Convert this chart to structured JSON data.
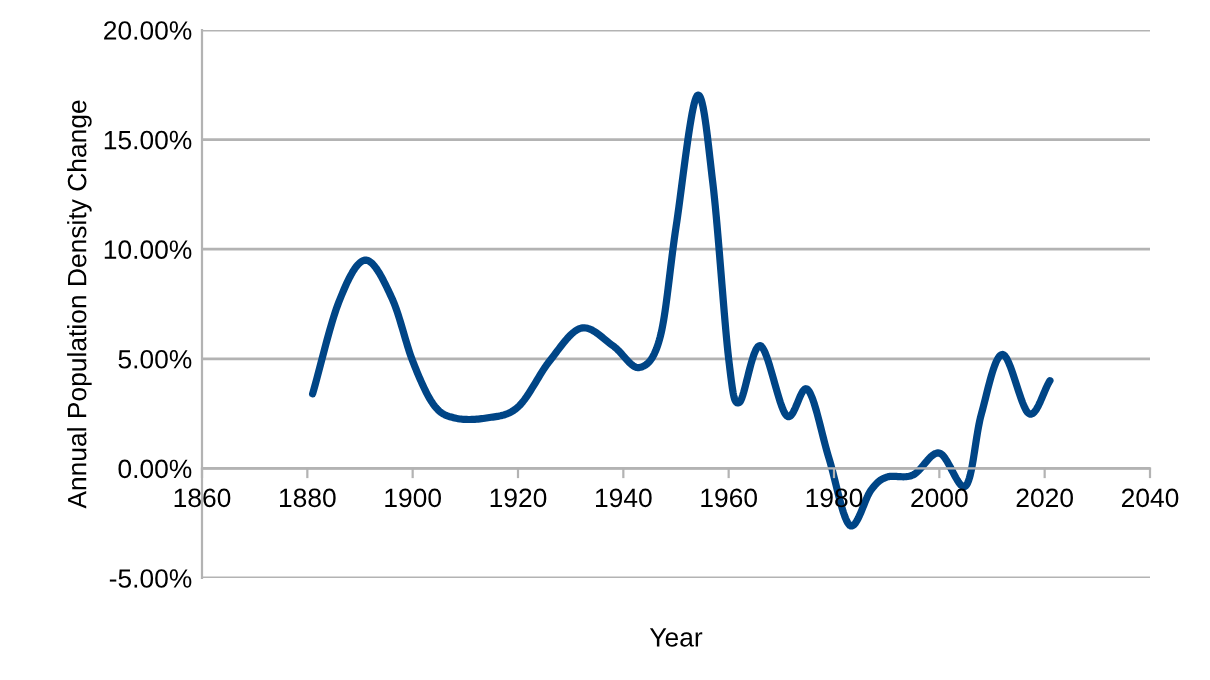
{
  "chart_data": {
    "type": "line",
    "xlabel": "Year",
    "ylabel": "Annual Population Density Change",
    "x": [
      1881,
      1886,
      1891,
      1896,
      1900,
      1904,
      1908,
      1914,
      1920,
      1926,
      1932,
      1938,
      1943,
      1947,
      1950,
      1954,
      1957,
      1960,
      1962,
      1966,
      1971,
      1975,
      1979,
      1983,
      1987,
      1990,
      1995,
      2000,
      2005,
      2008,
      2012,
      2017,
      2021
    ],
    "series": [
      {
        "color": "#004586",
        "values": [
          3.4,
          7.6,
          9.5,
          7.8,
          4.9,
          2.9,
          2.3,
          2.3,
          2.8,
          4.9,
          6.4,
          5.6,
          4.6,
          6.0,
          11.0,
          17.0,
          13.0,
          5.0,
          3.0,
          5.6,
          2.4,
          3.6,
          0.5,
          -2.6,
          -1.0,
          -0.4,
          -0.3,
          0.7,
          -0.8,
          2.5,
          5.2,
          2.5,
          4.0
        ]
      }
    ],
    "xlim": [
      1860,
      2040
    ],
    "xticks": [
      1860,
      1880,
      1900,
      1920,
      1940,
      1960,
      1980,
      2000,
      2020,
      2040
    ],
    "ylim": [
      -5,
      20
    ],
    "yticks": [
      {
        "value": -5,
        "label": "-5.00%"
      },
      {
        "value": 0,
        "label": "0.00%"
      },
      {
        "value": 5,
        "label": "5.00%"
      },
      {
        "value": 10,
        "label": "10.00%"
      },
      {
        "value": 15,
        "label": "15.00%"
      },
      {
        "value": 20,
        "label": "20.00%"
      }
    ],
    "grid": "y",
    "marker": "none",
    "line_style": "solid"
  }
}
